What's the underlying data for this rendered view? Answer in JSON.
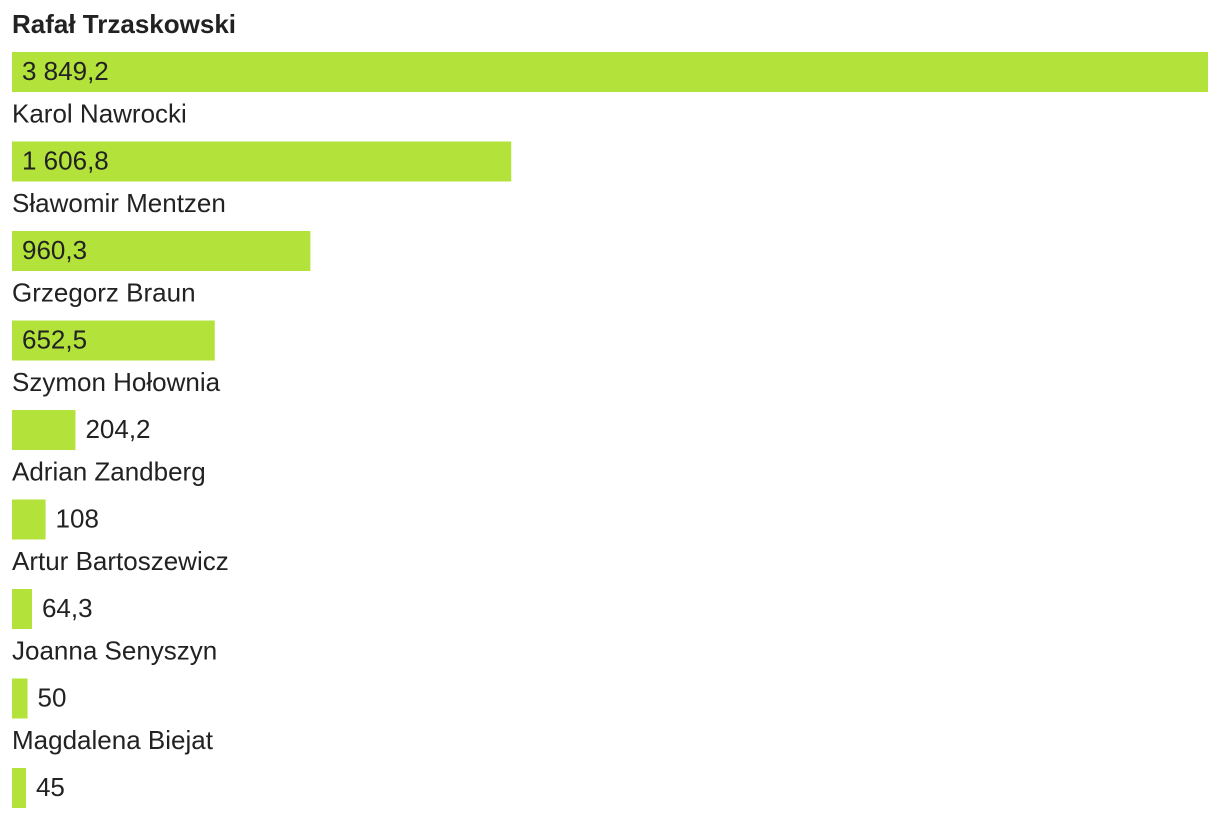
{
  "chart_data": {
    "type": "bar",
    "orientation": "horizontal",
    "color": "#b3e23b",
    "categories": [
      "Rafał Trzaskowski",
      "Karol Nawrocki",
      "Sławomir Mentzen",
      "Grzegorz Braun",
      "Szymon Hołownia",
      "Adrian Zandberg",
      "Artur Bartoszewicz",
      "Joanna Senyszyn",
      "Magdalena Biejat"
    ],
    "values": [
      3849.2,
      1606.8,
      960.3,
      652.5,
      204.2,
      108,
      64.3,
      50,
      45
    ],
    "value_labels": [
      "3 849,2",
      "1 606,8",
      "960,3",
      "652,5",
      "204,2",
      "108",
      "64,3",
      "50",
      "45"
    ]
  }
}
